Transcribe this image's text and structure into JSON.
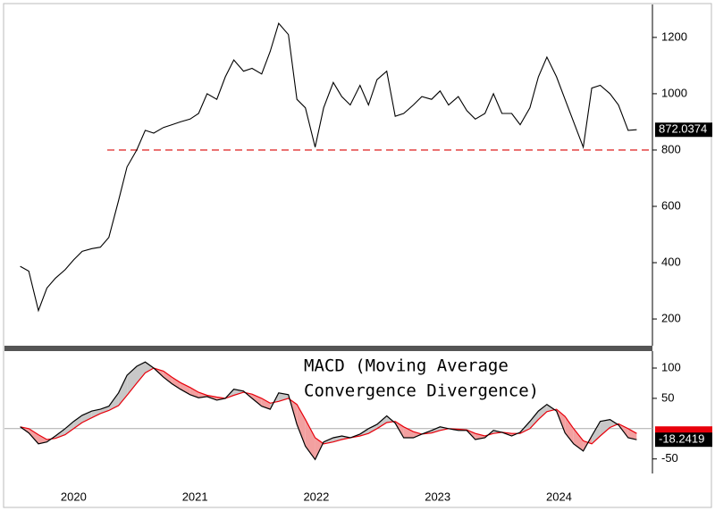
{
  "chart_data": [
    {
      "type": "line",
      "x": [
        2020.06,
        2020.13,
        2020.21,
        2020.28,
        2020.35,
        2020.43,
        2020.5,
        2020.57,
        2020.65,
        2020.72,
        2020.79,
        2020.87,
        2020.94,
        2021.02,
        2021.09,
        2021.16,
        2021.24,
        2021.31,
        2021.38,
        2021.46,
        2021.53,
        2021.6,
        2021.68,
        2021.75,
        2021.82,
        2021.9,
        2021.97,
        2022.05,
        2022.12,
        2022.19,
        2022.27,
        2022.34,
        2022.41,
        2022.49,
        2022.56,
        2022.64,
        2022.71,
        2022.78,
        2022.86,
        2022.93,
        2023.0,
        2023.08,
        2023.15,
        2023.22,
        2023.3,
        2023.37,
        2023.45,
        2023.52,
        2023.59,
        2023.67,
        2023.74,
        2023.81,
        2023.89,
        2023.96,
        2024.03,
        2024.11,
        2024.18,
        2024.26,
        2024.33,
        2024.4,
        2024.48,
        2024.55,
        2024.62,
        2024.7,
        2024.77,
        2024.84,
        2024.92,
        2024.99,
        2025.07,
        2025.14
      ],
      "series": [
        {
          "color": "#000000",
          "values": [
            387,
            370,
            230,
            310,
            345,
            375,
            410,
            440,
            450,
            455,
            490,
            620,
            740,
            800,
            870,
            860,
            880,
            890,
            900,
            910,
            930,
            1000,
            980,
            1060,
            1120,
            1080,
            1090,
            1070,
            1150,
            1250,
            1210,
            980,
            950,
            810,
            950,
            1040,
            990,
            960,
            1030,
            960,
            1050,
            1080,
            920,
            930,
            960,
            990,
            980,
            1010,
            960,
            990,
            940,
            910,
            930,
            1000,
            930,
            930,
            890,
            950,
            1060,
            1130,
            1060,
            980,
            900,
            810,
            1020,
            1030,
            1000,
            960,
            870,
            872.0374
          ]
        }
      ],
      "xlim": [
        2019.93,
        2025.27
      ],
      "ylim": [
        105,
        1317
      ],
      "yticks": [
        200,
        400,
        600,
        800,
        1000,
        1200
      ],
      "reference_line": {
        "value": 800,
        "color": "#e03030"
      }
    },
    {
      "type": "line",
      "annotation": [
        "MACD (Moving Average",
        "Convergence Divergence)"
      ],
      "x": [
        2020.06,
        2020.13,
        2020.21,
        2020.28,
        2020.35,
        2020.43,
        2020.5,
        2020.57,
        2020.65,
        2020.72,
        2020.79,
        2020.87,
        2020.94,
        2021.02,
        2021.09,
        2021.16,
        2021.24,
        2021.31,
        2021.38,
        2021.46,
        2021.53,
        2021.6,
        2021.68,
        2021.75,
        2021.82,
        2021.9,
        2021.97,
        2022.05,
        2022.12,
        2022.19,
        2022.27,
        2022.34,
        2022.41,
        2022.49,
        2022.56,
        2022.64,
        2022.71,
        2022.78,
        2022.86,
        2022.93,
        2023.0,
        2023.08,
        2023.15,
        2023.22,
        2023.3,
        2023.37,
        2023.45,
        2023.52,
        2023.59,
        2023.67,
        2023.74,
        2023.81,
        2023.89,
        2023.96,
        2024.03,
        2024.11,
        2024.18,
        2024.26,
        2024.33,
        2024.4,
        2024.48,
        2024.55,
        2024.62,
        2024.7,
        2024.77,
        2024.84,
        2024.92,
        2024.99,
        2025.07,
        2025.14
      ],
      "series": [
        {
          "color": "#000000",
          "values": [
            3,
            -7,
            -25,
            -22,
            -12,
            0,
            12,
            22,
            29,
            32,
            37,
            59,
            88,
            103,
            110,
            100,
            85,
            74,
            65,
            56,
            51,
            53,
            47,
            50,
            65,
            62,
            50,
            37,
            32,
            59,
            56,
            7,
            -29,
            -51,
            -22,
            -15,
            -12,
            -15,
            -9,
            0,
            7,
            21,
            9,
            -15,
            -15,
            -9,
            -3,
            3,
            0,
            -3,
            -3,
            -18,
            -15,
            -3,
            -6,
            -12,
            -6,
            12,
            29,
            40,
            29,
            -7,
            -25,
            -37,
            -12,
            12,
            15,
            6,
            -15,
            -18.2419
          ]
        },
        {
          "color": "#e8000b",
          "values": [
            3,
            0,
            -10,
            -18,
            -16,
            -10,
            0,
            10,
            18,
            25,
            30,
            38,
            55,
            75,
            92,
            100,
            95,
            85,
            76,
            68,
            60,
            55,
            52,
            50,
            55,
            60,
            57,
            50,
            42,
            45,
            50,
            40,
            15,
            -15,
            -25,
            -22,
            -18,
            -15,
            -12,
            -8,
            0,
            10,
            12,
            3,
            -5,
            -9,
            -7,
            -3,
            0,
            -1,
            -2,
            -8,
            -12,
            -8,
            -6,
            -8,
            -8,
            0,
            15,
            28,
            32,
            20,
            0,
            -20,
            -25,
            -12,
            2,
            8,
            0,
            -8
          ]
        }
      ],
      "xlim": [
        2019.93,
        2025.27
      ],
      "ylim": [
        -74,
        128
      ],
      "yticks": [
        -50,
        50,
        100
      ],
      "xticks": [
        {
          "value": 2020.5,
          "label": "2020"
        },
        {
          "value": 2021.5,
          "label": "2021"
        },
        {
          "value": 2022.5,
          "label": "2022"
        },
        {
          "value": 2023.5,
          "label": "2023"
        },
        {
          "value": 2024.5,
          "label": "2024"
        }
      ]
    }
  ]
}
